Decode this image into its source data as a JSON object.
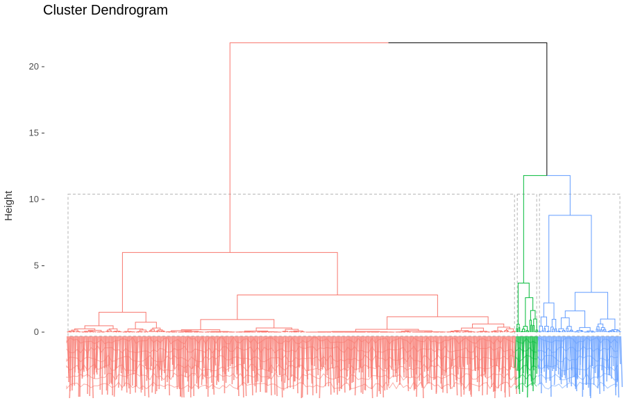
{
  "chart_data": {
    "type": "dendrogram",
    "title": "Cluster Dendrogram",
    "ylabel": "Height",
    "yticks": [
      0,
      5,
      10,
      15,
      20
    ],
    "ylim": [
      -5,
      22.5
    ],
    "grid": false,
    "leaf_count": 500,
    "k": 3,
    "root": {
      "height": 21.8,
      "color": "#000000"
    },
    "clusters": [
      {
        "name": "cluster-1",
        "color": "#F8766D",
        "leaves": 405,
        "merge_height": 21.8,
        "rect_top": 10.4,
        "subtree_heights": [
          6.0,
          2.8,
          1.5,
          1.2,
          0.8,
          0.6,
          0.5
        ]
      },
      {
        "name": "cluster-2",
        "color": "#00BA38",
        "leaves": 20,
        "merge_height": 11.8,
        "rect_top": 10.4,
        "subtree_heights": [
          3.7,
          2.6,
          0.6
        ]
      },
      {
        "name": "cluster-3",
        "color": "#619CFF",
        "leaves": 75,
        "merge_height": 8.8,
        "rect_top": 10.4,
        "subtree_heights": [
          8.8,
          3.0,
          2.2,
          1.3,
          0.6
        ]
      }
    ],
    "upper_merge": {
      "height": 11.8,
      "joins": [
        "cluster-2",
        "cluster-3"
      ]
    }
  }
}
